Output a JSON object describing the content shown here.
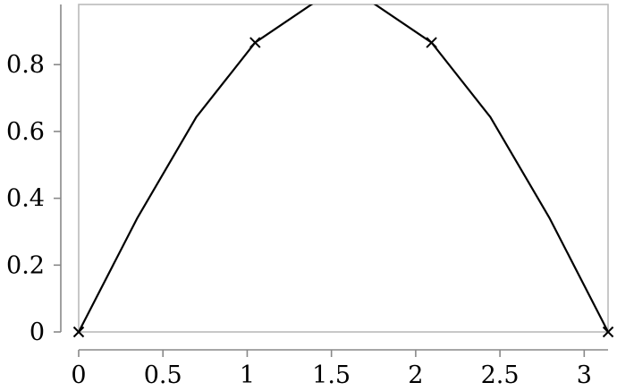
{
  "chart_data": {
    "type": "line",
    "title": "",
    "xlabel": "",
    "ylabel": "",
    "xlim": [
      0,
      3.14159
    ],
    "ylim": [
      0,
      0.98
    ],
    "grid": false,
    "xticks": [
      0,
      0.5,
      1,
      1.5,
      2,
      2.5,
      3
    ],
    "xtick_labels": [
      "0",
      "0.5",
      "1",
      "1.5",
      "2",
      "2.5",
      "3"
    ],
    "yticks": [
      0,
      0.2,
      0.4,
      0.6,
      0.8
    ],
    "ytick_labels": [
      "0",
      "0.2",
      "0.4",
      "0.6",
      "0.8"
    ],
    "series": [
      {
        "color": "#000000",
        "x": [
          0,
          0.349,
          0.698,
          1.047,
          1.396,
          1.745,
          2.094,
          2.443,
          2.793,
          3.142
        ],
        "y": [
          0,
          0.342,
          0.643,
          0.866,
          0.985,
          0.985,
          0.866,
          0.643,
          0.342,
          0
        ],
        "markers_at": [
          0,
          3,
          6,
          9
        ],
        "marker": "x"
      }
    ]
  }
}
